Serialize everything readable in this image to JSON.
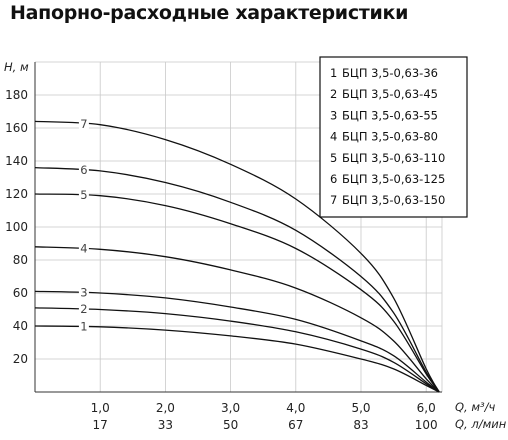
{
  "chart_data": {
    "type": "line",
    "title": "Напорно-расходные характеристики",
    "ylabel": "H, м",
    "xlabel": "Q, м³/ч",
    "x2label": "Q, л/мин",
    "xlim": [
      0,
      6.2
    ],
    "ylim": [
      0,
      200
    ],
    "yticks": [
      20,
      40,
      60,
      80,
      100,
      120,
      140,
      160,
      180
    ],
    "xticks": [
      "1,0",
      "2,0",
      "3,0",
      "4,0",
      "5,0",
      "6,0"
    ],
    "xticks2": [
      "17",
      "33",
      "50",
      "67",
      "83",
      "100"
    ],
    "grid": true,
    "legend_position": "top-right",
    "x": [
      0.0,
      1.0,
      2.0,
      3.0,
      4.0,
      5.0,
      5.5,
      6.0,
      6.2
    ],
    "series": [
      {
        "name": "БЦП 3,5-0,63-36",
        "label": "1",
        "values": [
          40,
          39.5,
          37.5,
          34,
          29,
          20,
          14,
          4,
          0
        ]
      },
      {
        "name": "БЦП 3,5-0,63-45",
        "label": "2",
        "values": [
          51,
          50,
          47.5,
          43,
          36.5,
          26,
          18,
          5,
          0
        ]
      },
      {
        "name": "БЦП 3,5-0,63-55",
        "label": "3",
        "values": [
          61,
          60,
          57,
          51.5,
          44,
          31,
          22,
          6,
          0
        ]
      },
      {
        "name": "БЦП 3,5-0,63-80",
        "label": "4",
        "values": [
          88,
          86.5,
          82,
          74,
          63,
          45,
          31,
          8,
          0
        ]
      },
      {
        "name": "БЦП 3,5-0,63-110",
        "label": "5",
        "values": [
          120,
          119,
          113,
          102,
          87,
          62,
          43,
          11,
          0
        ]
      },
      {
        "name": "БЦП 3,5-0,63-125",
        "label": "6",
        "values": [
          136,
          134,
          127,
          115,
          98,
          70,
          48,
          12,
          0
        ]
      },
      {
        "name": "БЦП 3,5-0,63-150",
        "label": "7",
        "values": [
          164,
          162,
          153,
          138,
          117,
          84,
          57,
          14,
          0
        ]
      }
    ],
    "colors": {
      "curve": "#111111",
      "grid": "#c9c9c9",
      "axis": "#333333"
    }
  }
}
